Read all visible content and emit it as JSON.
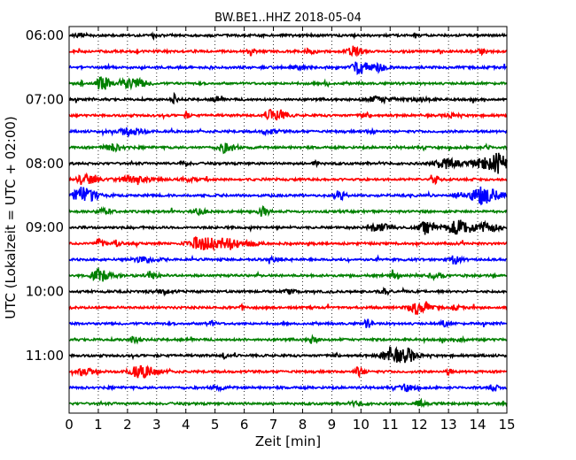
{
  "chart_data": {
    "type": "line",
    "title": "BW.BE1..HHZ 2018-05-04",
    "xlabel": "Zeit  [min]",
    "ylabel": "UTC (Lokalzeit = UTC + 02:00)",
    "xlim": [
      0,
      15
    ],
    "x_ticks": [
      "0",
      "1",
      "2",
      "3",
      "4",
      "5",
      "6",
      "7",
      "8",
      "9",
      "10",
      "11",
      "12",
      "13",
      "14",
      "15"
    ],
    "y_ticks": [
      "06:00",
      "07:00",
      "08:00",
      "09:00",
      "10:00",
      "11:00"
    ],
    "trace_interval_minutes": 15,
    "grid": true,
    "trace_colors": [
      "#000000",
      "#ff0000",
      "#0000ff",
      "#008000"
    ],
    "traces": [
      {
        "start": "06:00",
        "events": [
          [
            0.3,
            0.2,
            0.25
          ],
          [
            2.9,
            0.3,
            0.1
          ]
        ]
      },
      {
        "start": "06:15",
        "events": [
          [
            6.2,
            0.4,
            0.15
          ],
          [
            9.7,
            0.6,
            0.25
          ],
          [
            8.2,
            0.3,
            0.2
          ],
          [
            14.1,
            0.3,
            0.15
          ]
        ]
      },
      {
        "start": "06:30",
        "events": [
          [
            1.3,
            0.4,
            0.1
          ],
          [
            9.9,
            0.8,
            0.35
          ],
          [
            10.6,
            0.5,
            0.25
          ],
          [
            7.8,
            0.2,
            0.3
          ]
        ]
      },
      {
        "start": "06:45",
        "events": [
          [
            0.4,
            0.4,
            0.1
          ],
          [
            1.1,
            0.8,
            0.3
          ],
          [
            1.8,
            0.5,
            0.2
          ],
          [
            2.2,
            0.6,
            0.4
          ],
          [
            8.8,
            0.3,
            0.1
          ]
        ]
      },
      {
        "start": "07:00",
        "events": [
          [
            3.6,
            0.6,
            0.08
          ],
          [
            5.0,
            0.3,
            0.2
          ],
          [
            10.5,
            0.3,
            0.6
          ],
          [
            12.0,
            0.2,
            0.4
          ]
        ]
      },
      {
        "start": "07:15",
        "events": [
          [
            4.0,
            0.4,
            0.1
          ],
          [
            7.0,
            0.9,
            0.35
          ],
          [
            10.1,
            0.3,
            0.2
          ],
          [
            13.0,
            0.2,
            0.3
          ]
        ]
      },
      {
        "start": "07:30",
        "events": [
          [
            2.0,
            0.4,
            0.5
          ],
          [
            6.8,
            0.3,
            0.3
          ],
          [
            10.3,
            0.2,
            0.2
          ]
        ]
      },
      {
        "start": "07:45",
        "events": [
          [
            1.4,
            0.4,
            0.4
          ],
          [
            5.3,
            0.6,
            0.35
          ],
          [
            14.3,
            0.3,
            0.1
          ]
        ]
      },
      {
        "start": "08:00",
        "events": [
          [
            3.9,
            0.3,
            0.2
          ],
          [
            8.4,
            0.5,
            0.1
          ],
          [
            12.8,
            0.6,
            0.5
          ],
          [
            14.2,
            0.7,
            0.6
          ],
          [
            14.7,
            0.9,
            0.3
          ]
        ]
      },
      {
        "start": "08:15",
        "events": [
          [
            0.5,
            0.6,
            0.4
          ],
          [
            2.0,
            0.3,
            0.8
          ],
          [
            4.0,
            0.2,
            0.3
          ],
          [
            12.5,
            0.5,
            0.15
          ]
        ]
      },
      {
        "start": "08:30",
        "events": [
          [
            0.4,
            1.0,
            0.5
          ],
          [
            9.2,
            0.6,
            0.2
          ],
          [
            13.3,
            0.5,
            0.15
          ],
          [
            14.1,
            1.0,
            0.6
          ]
        ]
      },
      {
        "start": "08:45",
        "events": [
          [
            1.1,
            0.3,
            0.3
          ],
          [
            4.4,
            0.3,
            0.3
          ],
          [
            6.6,
            0.6,
            0.2
          ]
        ]
      },
      {
        "start": "09:00",
        "events": [
          [
            10.5,
            0.5,
            0.5
          ],
          [
            12.2,
            0.6,
            0.4
          ],
          [
            13.3,
            0.9,
            0.6
          ],
          [
            14.3,
            0.5,
            0.4
          ]
        ]
      },
      {
        "start": "09:15",
        "events": [
          [
            1.0,
            0.5,
            0.2
          ],
          [
            1.6,
            0.4,
            0.15
          ],
          [
            4.5,
            0.8,
            0.7
          ],
          [
            5.4,
            0.7,
            0.3
          ],
          [
            6.2,
            0.3,
            0.3
          ]
        ]
      },
      {
        "start": "09:30",
        "events": [
          [
            2.5,
            0.3,
            0.5
          ],
          [
            7.0,
            0.2,
            0.3
          ],
          [
            13.2,
            0.5,
            0.2
          ]
        ]
      },
      {
        "start": "09:45",
        "events": [
          [
            1.0,
            0.7,
            0.4
          ],
          [
            2.8,
            0.3,
            0.3
          ],
          [
            11.1,
            0.4,
            0.1
          ],
          [
            12.5,
            0.3,
            0.3
          ]
        ]
      },
      {
        "start": "10:00",
        "events": [
          [
            3.1,
            0.2,
            0.4
          ],
          [
            7.5,
            0.2,
            0.3
          ],
          [
            10.8,
            0.3,
            0.2
          ]
        ]
      },
      {
        "start": "10:15",
        "events": [
          [
            5.9,
            0.3,
            0.1
          ],
          [
            11.9,
            0.8,
            0.4
          ],
          [
            13.2,
            0.3,
            0.15
          ]
        ]
      },
      {
        "start": "10:30",
        "events": [
          [
            4.8,
            0.3,
            0.2
          ],
          [
            10.2,
            0.5,
            0.15
          ],
          [
            12.8,
            0.3,
            0.2
          ]
        ]
      },
      {
        "start": "10:45",
        "events": [
          [
            2.2,
            0.5,
            0.15
          ],
          [
            8.3,
            0.4,
            0.2
          ],
          [
            13.4,
            0.3,
            0.15
          ]
        ]
      },
      {
        "start": "11:00",
        "events": [
          [
            5.3,
            0.4,
            0.1
          ],
          [
            11.0,
            0.9,
            0.5
          ],
          [
            11.6,
            0.6,
            0.3
          ],
          [
            9.1,
            0.3,
            0.1
          ]
        ]
      },
      {
        "start": "11:15",
        "events": [
          [
            0.5,
            0.4,
            0.3
          ],
          [
            2.4,
            0.7,
            0.6
          ],
          [
            9.9,
            0.5,
            0.2
          ],
          [
            13.0,
            0.5,
            0.1
          ]
        ]
      },
      {
        "start": "11:30",
        "events": [
          [
            11.5,
            0.4,
            0.3
          ],
          [
            14.5,
            0.4,
            0.2
          ],
          [
            5.0,
            0.2,
            0.3
          ]
        ]
      },
      {
        "start": "11:45",
        "events": [
          [
            12.0,
            0.4,
            0.15
          ],
          [
            9.8,
            0.2,
            0.3
          ]
        ]
      }
    ]
  }
}
